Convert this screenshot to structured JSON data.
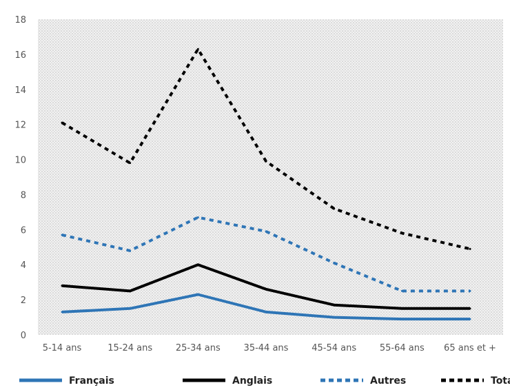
{
  "chart_data": {
    "type": "line",
    "title": "",
    "xlabel": "",
    "ylabel": "",
    "ylim": [
      0,
      18
    ],
    "yticks": [
      0,
      2,
      4,
      6,
      8,
      10,
      12,
      14,
      16,
      18
    ],
    "grid": false,
    "background_pattern": "dotted-hatch",
    "legend_position": "bottom",
    "categories": [
      "5-14 ans",
      "15-24 ans",
      "25-34 ans",
      "35-44 ans",
      "45-54 ans",
      "55-64 ans",
      "65 ans et +"
    ],
    "series": [
      {
        "name": "Français",
        "values": [
          1.3,
          1.5,
          2.3,
          1.3,
          1.0,
          0.9,
          0.9
        ],
        "color": "#2e75b6",
        "dash": "solid"
      },
      {
        "name": "Anglais",
        "values": [
          2.8,
          2.5,
          4.0,
          2.6,
          1.7,
          1.5,
          1.5
        ],
        "color": "#000000",
        "dash": "solid"
      },
      {
        "name": "Autres",
        "values": [
          5.7,
          4.8,
          6.7,
          5.9,
          4.1,
          2.5,
          2.5
        ],
        "color": "#2e75b6",
        "dash": "dashed"
      },
      {
        "name": "Total",
        "values": [
          12.1,
          9.8,
          16.3,
          9.9,
          7.2,
          5.8,
          4.9
        ],
        "color": "#000000",
        "dash": "dashed"
      }
    ]
  }
}
